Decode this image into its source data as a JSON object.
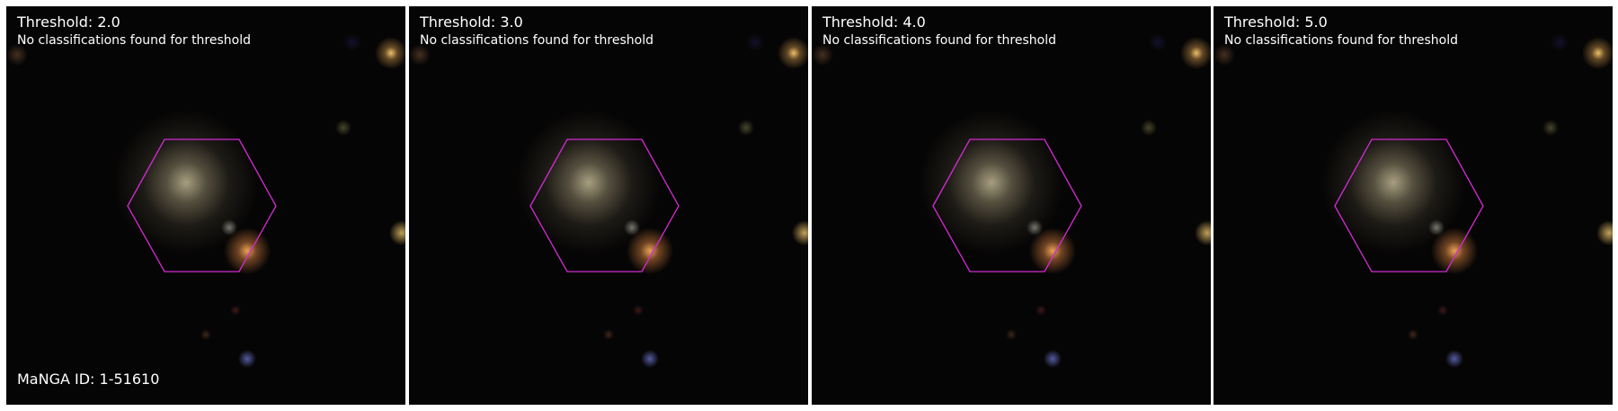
{
  "panels": [
    {
      "title": "Threshold: 2.0",
      "message": "No classifications found for threshold"
    },
    {
      "title": "Threshold: 3.0",
      "message": "No classifications found for threshold"
    },
    {
      "title": "Threshold: 4.0",
      "message": "No classifications found for threshold"
    },
    {
      "title": "Threshold: 5.0",
      "message": "No classifications found for threshold"
    }
  ],
  "manga_id": "MaNGA ID: 1-51610",
  "colors": {
    "hexagon_outline": "#d42ad4",
    "background": "#060505",
    "text": "#ffffff"
  }
}
